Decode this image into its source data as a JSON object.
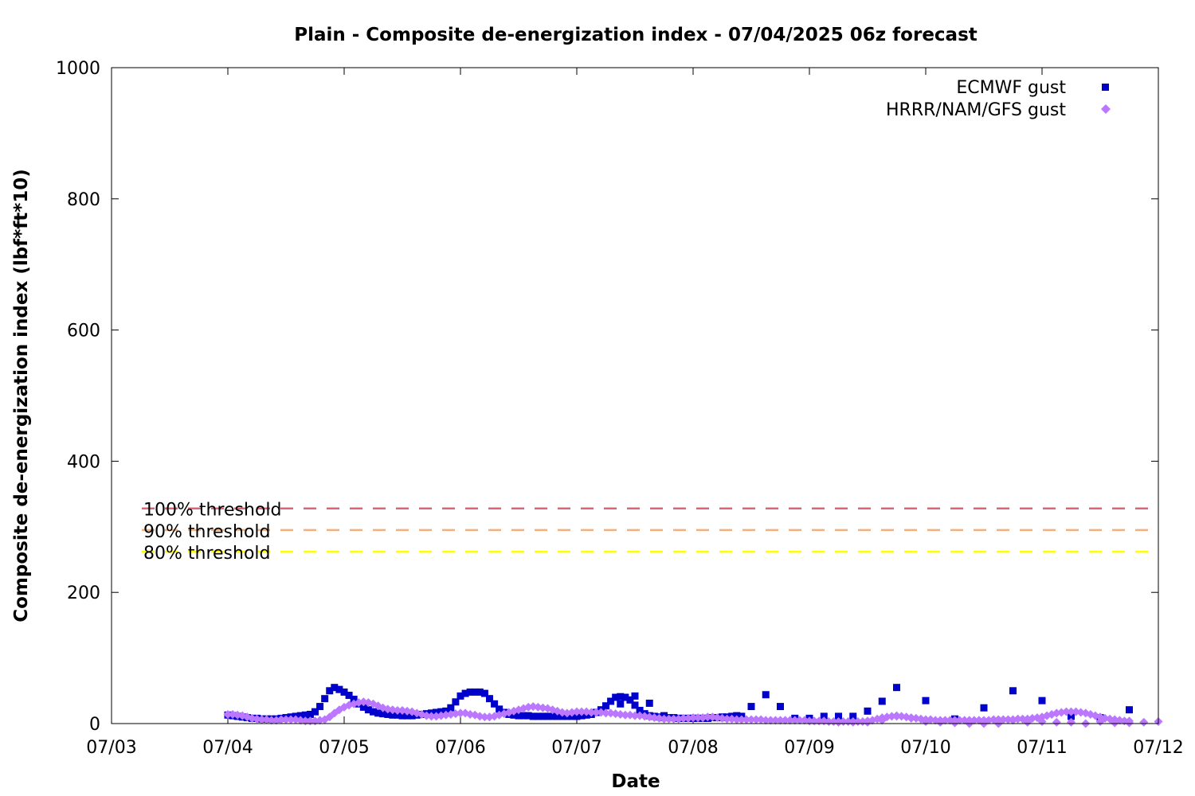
{
  "chart_data": {
    "type": "scatter",
    "title": "Plain - Composite de-energization index - 07/04/2025 06z forecast",
    "xlabel": "Date",
    "ylabel": "Composite de-energization index (lbf*ft*10)",
    "xlim": [
      "07/03",
      "07/12"
    ],
    "ylim": [
      0,
      1000
    ],
    "x_ticks": [
      "07/03",
      "07/04",
      "07/05",
      "07/06",
      "07/07",
      "07/08",
      "07/09",
      "07/10",
      "07/11",
      "07/12"
    ],
    "y_ticks": [
      0,
      200,
      400,
      600,
      800,
      1000
    ],
    "legend_position": "top-right",
    "thresholds": [
      {
        "label": "100% threshold",
        "value": 328,
        "color": "#dc6478"
      },
      {
        "label": "90% threshold",
        "value": 295,
        "color": "#f4b07c"
      },
      {
        "label": "80% threshold",
        "value": 262,
        "color": "#ffff00"
      }
    ],
    "series": [
      {
        "name": "ECMWF gust",
        "marker": "square",
        "color": "#0000cc",
        "hourly_start": "07/04 00:00",
        "hourly_interval_hours": 1,
        "hourly_values": [
          13,
          12,
          11,
          10,
          9,
          8,
          8,
          7,
          7,
          7,
          7,
          8,
          9,
          10,
          11,
          12,
          13,
          14,
          18,
          26,
          38,
          50,
          55,
          52,
          48,
          43,
          37,
          30,
          25,
          21,
          18,
          16,
          15,
          14,
          13,
          13,
          12,
          12,
          12,
          13,
          14,
          15,
          16,
          17,
          18,
          19,
          24,
          33,
          42,
          46,
          48,
          48,
          48,
          46,
          38,
          30,
          22,
          17,
          14,
          13,
          12,
          12,
          12,
          11,
          11,
          11,
          11,
          11,
          11,
          11,
          11,
          11,
          11,
          12,
          13,
          14,
          17,
          21,
          27,
          34,
          40,
          41,
          40,
          36,
          28,
          20,
          15,
          12,
          11,
          10,
          9,
          9,
          9,
          8,
          8,
          8,
          8,
          8,
          8,
          8,
          9,
          9,
          10,
          10,
          11,
          11,
          11
        ],
        "sparse_values": [
          {
            "x": "07/07 09:00",
            "y": 30
          },
          {
            "x": "07/07 12:00",
            "y": 42
          },
          {
            "x": "07/07 15:00",
            "y": 31
          },
          {
            "x": "07/07 18:00",
            "y": 12
          },
          {
            "x": "07/07 21:00",
            "y": 8
          },
          {
            "x": "07/08 00:00",
            "y": 8
          },
          {
            "x": "07/08 03:00",
            "y": 8
          },
          {
            "x": "07/08 06:00",
            "y": 9
          },
          {
            "x": "07/08 09:00",
            "y": 12
          },
          {
            "x": "07/08 12:00",
            "y": 26
          },
          {
            "x": "07/08 15:00",
            "y": 44
          },
          {
            "x": "07/08 18:00",
            "y": 26
          },
          {
            "x": "07/08 21:00",
            "y": 8
          },
          {
            "x": "07/09 00:00",
            "y": 8
          },
          {
            "x": "07/09 03:00",
            "y": 11
          },
          {
            "x": "07/09 06:00",
            "y": 11
          },
          {
            "x": "07/09 09:00",
            "y": 11
          },
          {
            "x": "07/09 12:00",
            "y": 19
          },
          {
            "x": "07/09 15:00",
            "y": 34
          },
          {
            "x": "07/09 18:00",
            "y": 55
          },
          {
            "x": "07/10 00:00",
            "y": 35
          },
          {
            "x": "07/10 06:00",
            "y": 7
          },
          {
            "x": "07/10 12:00",
            "y": 24
          },
          {
            "x": "07/10 18:00",
            "y": 50
          },
          {
            "x": "07/11 00:00",
            "y": 35
          },
          {
            "x": "07/11 06:00",
            "y": 11
          },
          {
            "x": "07/11 12:00",
            "y": 9
          },
          {
            "x": "07/11 18:00",
            "y": 21
          }
        ]
      },
      {
        "name": "HRRR/NAM/GFS gust",
        "marker": "diamond",
        "color": "#bb77ff",
        "hourly_start": "07/04 00:00",
        "hourly_interval_hours": 1,
        "hourly_values": [
          14,
          14,
          13,
          12,
          10,
          8,
          7,
          6,
          6,
          5,
          5,
          6,
          6,
          6,
          6,
          5,
          4,
          4,
          4,
          5,
          6,
          10,
          16,
          21,
          25,
          28,
          30,
          32,
          33,
          32,
          30,
          27,
          24,
          22,
          21,
          20,
          20,
          19,
          18,
          16,
          14,
          12,
          11,
          11,
          12,
          13,
          14,
          15,
          16,
          16,
          14,
          13,
          11,
          10,
          10,
          11,
          13,
          15,
          17,
          19,
          21,
          23,
          25,
          26,
          25,
          24,
          23,
          21,
          19,
          17,
          16,
          17,
          18,
          18,
          18,
          17,
          17,
          17,
          16,
          16,
          15,
          14,
          13,
          13,
          12,
          12,
          11,
          10,
          9,
          8,
          7,
          7,
          7,
          7,
          8,
          8,
          9,
          9,
          9,
          10,
          10,
          9,
          8,
          7,
          7,
          6,
          6,
          6,
          6,
          6,
          6,
          5,
          5,
          5,
          5,
          5,
          5,
          5,
          5,
          5,
          4,
          4,
          4,
          4,
          3,
          3,
          3,
          3,
          3,
          3,
          3,
          3,
          4,
          5,
          7,
          9,
          10,
          11,
          11,
          11,
          10,
          9,
          8,
          7,
          6,
          6,
          5,
          5,
          5,
          5,
          5,
          5,
          5,
          5,
          5,
          5,
          5,
          5,
          6,
          6,
          6,
          6,
          6,
          7,
          7,
          7,
          8,
          9,
          10,
          12,
          14,
          16,
          17,
          18,
          18,
          18,
          17,
          16,
          14,
          12,
          10,
          8,
          7,
          6,
          5,
          4,
          4
        ],
        "sparse_values": [
          {
            "x": "07/09 06:00",
            "y": 2
          },
          {
            "x": "07/09 09:00",
            "y": 2
          },
          {
            "x": "07/09 12:00",
            "y": 2
          },
          {
            "x": "07/09 15:00",
            "y": 5
          },
          {
            "x": "07/09 18:00",
            "y": 12
          },
          {
            "x": "07/09 21:00",
            "y": 8
          },
          {
            "x": "07/10 00:00",
            "y": 3
          },
          {
            "x": "07/10 03:00",
            "y": 2
          },
          {
            "x": "07/10 06:00",
            "y": 1
          },
          {
            "x": "07/10 09:00",
            "y": 0
          },
          {
            "x": "07/10 12:00",
            "y": 0
          },
          {
            "x": "07/10 15:00",
            "y": 0
          },
          {
            "x": "07/10 18:00",
            "y": 5
          },
          {
            "x": "07/10 21:00",
            "y": 2
          },
          {
            "x": "07/11 00:00",
            "y": 3
          },
          {
            "x": "07/11 03:00",
            "y": 2
          },
          {
            "x": "07/11 06:00",
            "y": 2
          },
          {
            "x": "07/11 09:00",
            "y": 0
          },
          {
            "x": "07/11 12:00",
            "y": 3
          },
          {
            "x": "07/11 15:00",
            "y": 1
          },
          {
            "x": "07/11 18:00",
            "y": 1
          },
          {
            "x": "07/11 21:00",
            "y": 2
          },
          {
            "x": "07/12 00:00",
            "y": 3
          }
        ]
      }
    ]
  }
}
